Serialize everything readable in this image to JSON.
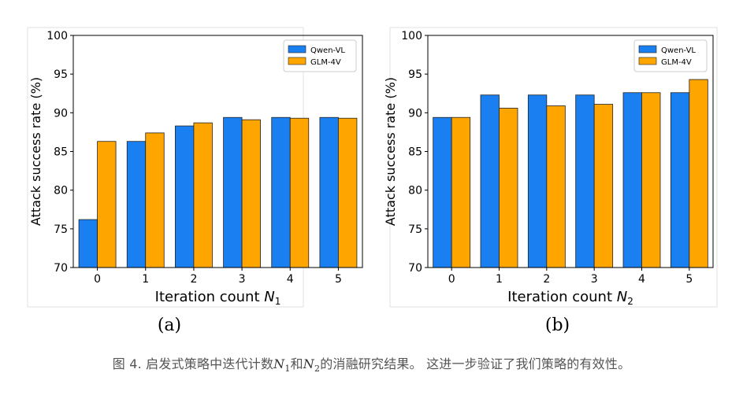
{
  "chart_data": [
    {
      "type": "bar",
      "panel_label": "(a)",
      "categories": [
        "0",
        "1",
        "2",
        "3",
        "4",
        "5"
      ],
      "series": [
        {
          "name": "Qwen-VL",
          "values": [
            76.2,
            86.3,
            88.3,
            89.4,
            89.4,
            89.4
          ]
        },
        {
          "name": "GLM-4V",
          "values": [
            86.3,
            87.4,
            88.7,
            89.1,
            89.3,
            89.3
          ]
        }
      ],
      "xlabel": "Iteration count",
      "xlabel_symbol": "N",
      "xlabel_subscript": "1",
      "ylabel": "Attack success rate (%)",
      "ylim": [
        70,
        100
      ],
      "yticks": [
        "70",
        "75",
        "80",
        "85",
        "90",
        "95",
        "100"
      ],
      "grid": false,
      "legend": "top-right"
    },
    {
      "type": "bar",
      "panel_label": "(b)",
      "categories": [
        "0",
        "1",
        "2",
        "3",
        "4",
        "5"
      ],
      "series": [
        {
          "name": "Qwen-VL",
          "values": [
            89.4,
            92.3,
            92.3,
            92.3,
            92.6,
            92.6
          ]
        },
        {
          "name": "GLM-4V",
          "values": [
            89.4,
            90.6,
            90.9,
            91.1,
            92.6,
            94.3
          ]
        }
      ],
      "xlabel": "Iteration count",
      "xlabel_symbol": "N",
      "xlabel_subscript": "2",
      "ylabel": "Attack success rate (%)",
      "ylim": [
        70,
        100
      ],
      "yticks": [
        "70",
        "75",
        "80",
        "85",
        "90",
        "95",
        "100"
      ],
      "grid": false,
      "legend": "top-right"
    }
  ],
  "colors": {
    "qwen": "#1a7ff0",
    "glm": "#ffa500"
  },
  "caption": {
    "prefix": "图 4. 启发式策略中迭代计数",
    "sym1": "N",
    "sub1": "1",
    "mid": "和",
    "sym2": "N",
    "sub2": "2",
    "suffix": "的消融研究结果。 这进一步验证了我们策略的有效性。"
  }
}
